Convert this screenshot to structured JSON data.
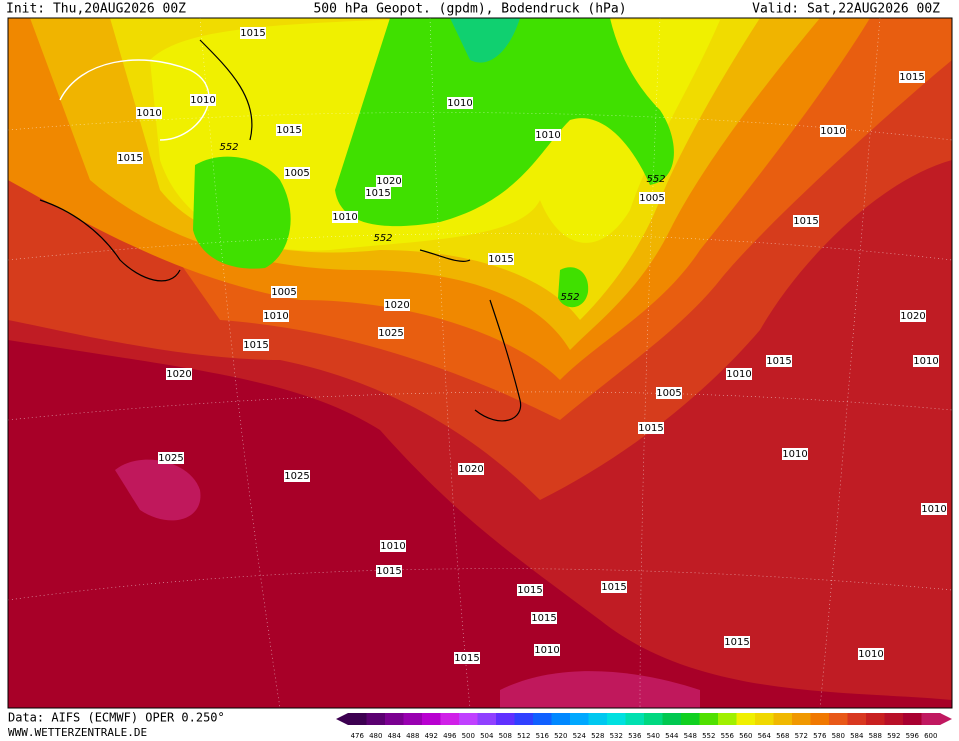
{
  "header": {
    "init": "Init: Thu,20AUG2026 00Z",
    "title": "500 hPa Geopot. (gpdm), Bodendruck (hPa)",
    "valid": "Valid: Sat,22AUG2026 00Z"
  },
  "footer": {
    "source": "Data: AIFS (ECMWF) OPER 0.250°",
    "site": "WWW.WETTERZENTRALE.DE"
  },
  "isobar_labels": [
    "1015",
    "1010",
    "1010",
    "1015",
    "552",
    "1015",
    "1005",
    "1020",
    "1015",
    "1010",
    "552",
    "1010",
    "1010",
    "552",
    "1005",
    "1015",
    "1010",
    "1015",
    "1015",
    "552",
    "1005",
    "1010",
    "1020",
    "1025",
    "1015",
    "1020",
    "1025",
    "1025",
    "1020",
    "1010",
    "1015",
    "1020",
    "1015",
    "1010",
    "1005",
    "1010",
    "1015",
    "1010",
    "1010",
    "1015",
    "1015",
    "1015",
    "1015",
    "1010",
    "1015",
    "1010"
  ],
  "scale": {
    "labels": [
      476,
      480,
      484,
      488,
      492,
      496,
      500,
      504,
      508,
      512,
      516,
      520,
      524,
      528,
      532,
      536,
      540,
      544,
      548,
      552,
      556,
      560,
      564,
      568,
      572,
      576,
      580,
      584,
      588,
      592,
      596,
      600
    ],
    "colors": [
      "#3c0050",
      "#5a0070",
      "#7a0090",
      "#9800b0",
      "#b800d0",
      "#d020e8",
      "#c040ff",
      "#9040ff",
      "#6030ff",
      "#3040ff",
      "#1060ff",
      "#0088ff",
      "#00a8ff",
      "#00c8f0",
      "#00e0e0",
      "#00e0b0",
      "#00d880",
      "#00c850",
      "#10d020",
      "#50e000",
      "#a0f000",
      "#f0f000",
      "#f0d800",
      "#f0b800",
      "#f09800",
      "#f07800",
      "#e85818",
      "#d83820",
      "#c82020",
      "#b81028",
      "#a80030",
      "#c01860"
    ]
  }
}
